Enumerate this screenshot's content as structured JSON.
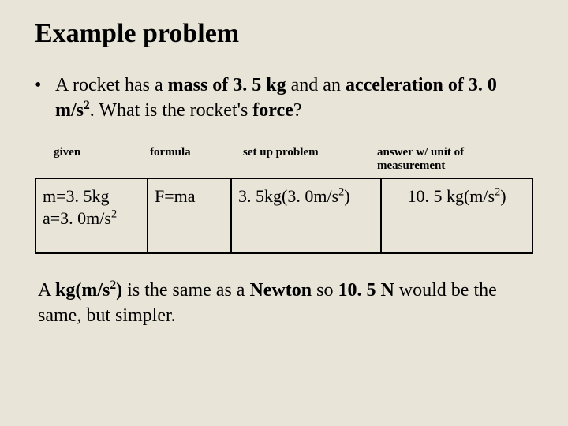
{
  "title": "Example problem",
  "bullet": "•",
  "problem": {
    "pre1": "A rocket has a ",
    "bold1": "mass of 3. 5 kg",
    "mid1": " and an ",
    "bold2": "acceleration of 3. 0 m/s",
    "bold2_sup": "2",
    "post1": ".  What is the rocket's ",
    "bold3": "force",
    "end": "?"
  },
  "headers": {
    "given": "given",
    "formula": "formula",
    "setup": "set up problem",
    "answer": "answer w/ unit of measurement"
  },
  "solution": {
    "given_line1": "m=3. 5kg",
    "given_line2_pre": "a=3. 0m/s",
    "given_line2_sup": "2",
    "formula": "F=ma",
    "setup_pre": "3. 5kg(3. 0m/s",
    "setup_sup": "2",
    "setup_post": ")",
    "answer_pre": "10. 5 kg(m/s",
    "answer_sup": "2",
    "answer_post": ")"
  },
  "footnote": {
    "p1": "A ",
    "b1_pre": "kg(m/s",
    "b1_sup": "2",
    "b1_post": ")",
    "p2": " is the same as a ",
    "b2": "Newton",
    "p3": " so ",
    "b3": "10. 5 N",
    "p4": " would be the same, but simpler."
  },
  "style": {
    "bg": "#e8e4d8",
    "text": "#000000",
    "title_size": 34,
    "body_size": 24,
    "header_size": 15,
    "cell_size": 22
  }
}
